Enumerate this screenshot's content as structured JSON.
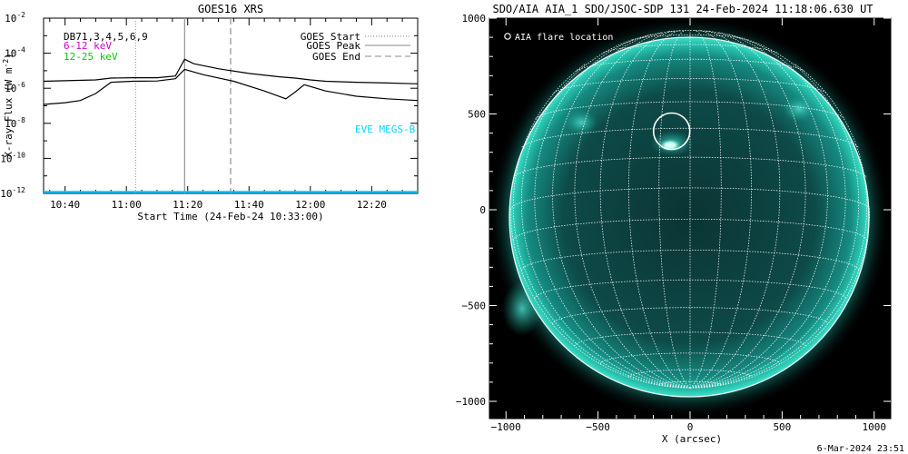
{
  "goes_panel": {
    "title": "GOES16 XRS",
    "ylabel_main": "X-ray Flux (W m",
    "ylabel_sup": "-2",
    "ylabel_close": ")",
    "xlabel": "Start Time (24-Feb-24 10:33:00)",
    "channel_list": "DB71,3,4,5,6,9",
    "channel_6_12": "6-12 keV",
    "channel_12_25": "12-25 keV",
    "eve_label": "EVE MEGS-B",
    "legend": {
      "start": "GOES Start",
      "peak": "GOES Peak",
      "end": "GOES End"
    },
    "ytick_exponents": [
      "-2",
      "-4",
      "-6",
      "-8",
      "-10",
      "-12"
    ],
    "xtick_labels": [
      "10:40",
      "11:00",
      "11:20",
      "11:40",
      "12:00",
      "12:20"
    ],
    "colors": {
      "axis": "#000000",
      "flux": "#000000",
      "baseline": "#00c8ff",
      "label_6_12": "#d100d1",
      "label_12_25": "#00cc00",
      "eve": "#00d8ff",
      "event_start": "#888888",
      "event_peak": "#999999",
      "event_end": "#999999"
    }
  },
  "chart_data": [
    {
      "type": "line",
      "title": "GOES16 XRS",
      "xlabel": "Start Time (24-Feb-24 10:33:00)",
      "ylabel": "X-ray Flux (W m^-2)",
      "y_scale": "log",
      "xlim_minutes_after_10_00": [
        33,
        155
      ],
      "ylim": [
        1e-12,
        0.01
      ],
      "event_lines_minutes_after_10_00": {
        "start": 63,
        "peak": 79,
        "end": 94
      },
      "series": [
        {
          "name": "upper",
          "x_minutes_after_10_00": [
            33,
            40,
            50,
            55,
            62,
            70,
            76,
            79,
            82,
            90,
            100,
            110,
            115,
            120,
            125,
            135,
            145,
            155
          ],
          "values": [
            2.5e-06,
            2.7e-06,
            3e-06,
            3.8e-06,
            4e-06,
            4e-06,
            5e-06,
            4.5e-05,
            2.5e-05,
            1.3e-05,
            7e-06,
            4.5e-06,
            3.8e-06,
            3e-06,
            2.5e-06,
            2.2e-06,
            2e-06,
            1.8e-06
          ]
        },
        {
          "name": "lower",
          "x_minutes_after_10_00": [
            33,
            40,
            45,
            50,
            55,
            62,
            70,
            76,
            79,
            85,
            95,
            105,
            112,
            115,
            118,
            125,
            135,
            145,
            155
          ],
          "values": [
            1.2e-07,
            1.5e-07,
            2e-07,
            5e-07,
            2.2e-06,
            2.5e-06,
            2.6e-06,
            3.5e-06,
            1.2e-05,
            6e-06,
            2.5e-06,
            7e-07,
            2.5e-07,
            6e-07,
            1.6e-06,
            7e-07,
            3.5e-07,
            2.5e-07,
            2e-07
          ]
        },
        {
          "name": "baseline",
          "x_minutes_after_10_00": [
            33,
            155
          ],
          "values": [
            1.2e-12,
            1.2e-12
          ]
        }
      ]
    },
    {
      "type": "scatter",
      "title": "SDO/AIA AIA_1 SDO/JSOC-SDP 131 24-Feb-2024 11:18:06.630 UT",
      "xlabel": "X (arcsec)",
      "ylabel": "",
      "xlim": [
        -1090,
        1090
      ],
      "ylim": [
        -1090,
        1000
      ],
      "solar_radius_arcsec": 975,
      "flare_location_arcsec": {
        "x": -100,
        "y": 410
      }
    }
  ],
  "aia_panel": {
    "title": "SDO/AIA AIA_1 SDO/JSOC-SDP 131 24-Feb-2024 11:18:06.630 UT",
    "xlabel": "X (arcsec)",
    "marker_symbol": "O",
    "marker_label": "AIA flare location",
    "xticks": [
      "-1000",
      "-500",
      "0",
      "500",
      "1000"
    ],
    "yticks": [
      "1000",
      "500",
      "0",
      "-500",
      "-1000"
    ],
    "timestamp": "6-Mar-2024 23:51",
    "colors": {
      "background": "#000000",
      "disk_center": "#0a3a3a",
      "disk_edge": "#1aa89a",
      "grid": "#ffffff",
      "marker": "#ffffff",
      "axis": "#000000"
    }
  }
}
